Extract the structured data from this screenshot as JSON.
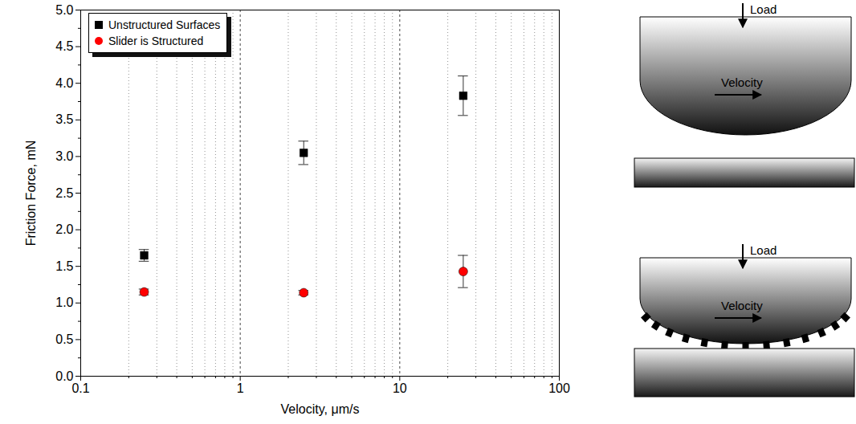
{
  "chart_data": {
    "type": "scatter",
    "x_label": "Velocity, μm/s",
    "y_label": "Friction Force, mN",
    "x": [
      0.25,
      2.5,
      25
    ],
    "series": [
      {
        "name": "Unstructured Surfaces",
        "color": "#000000",
        "marker": "square",
        "values": [
          1.65,
          3.05,
          3.83
        ],
        "errors": [
          0.08,
          0.16,
          0.27
        ]
      },
      {
        "name": "Slider is Structured",
        "color": "#ff0000",
        "marker": "circle",
        "values": [
          1.15,
          1.14,
          1.43
        ],
        "errors": [
          0.04,
          0.03,
          0.22
        ]
      }
    ],
    "log": "x",
    "xlim": [
      0.1,
      100
    ],
    "xticks": [
      0.1,
      1,
      10,
      100
    ],
    "ylim": [
      0,
      5
    ],
    "yticks": [
      {
        "value": 0,
        "label": "0.0"
      },
      0.5,
      {
        "value": 1,
        "label": "1.0"
      },
      1.5,
      {
        "value": 2,
        "label": "2.0"
      },
      2.5,
      {
        "value": 3,
        "label": "3.0"
      },
      3.5,
      {
        "value": 4,
        "label": "4.0"
      },
      4.5,
      {
        "value": 5,
        "label": "5.0"
      }
    ],
    "grid": true,
    "legend": "top-left"
  },
  "diagram": [
    {
      "load": "Load",
      "velocity": "Velocity",
      "structured": false
    },
    {
      "load": "Load",
      "velocity": "Velocity",
      "structured": true
    }
  ]
}
